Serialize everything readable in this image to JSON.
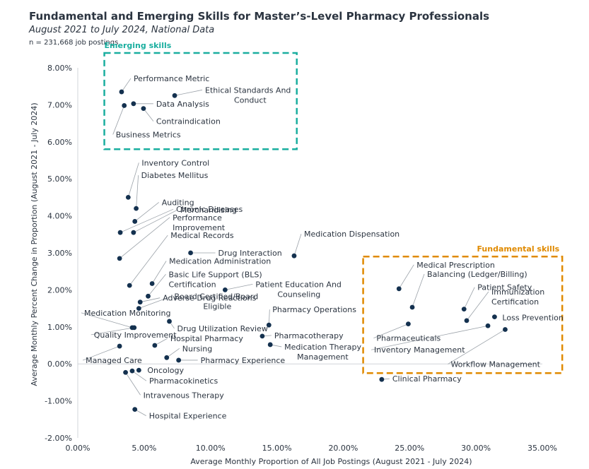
{
  "chart_data": {
    "type": "scatter",
    "title": "Fundamental and Emerging Skills for Master’s-Level Pharmacy Professionals",
    "subtitle": "August 2021 to July 2024, National Data",
    "note": "n = 231,668 job postings",
    "xlabel": "Average Monthly Proportion of All Job Postings (August 2021 - July 2024)",
    "ylabel": "Average Monthly Percent Change in Proportion (August 2021 - July 2024)",
    "xlim": [
      0,
      35
    ],
    "ylim": [
      -2,
      8
    ],
    "xticks": [
      "0.00%",
      "5.00%",
      "10.00%",
      "15.00%",
      "20.00%",
      "25.00%",
      "30.00%",
      "35.00%"
    ],
    "yticks": [
      "-2.00%",
      "-1.00%",
      "0.00%",
      "1.00%",
      "2.00%",
      "3.00%",
      "4.00%",
      "5.00%",
      "6.00%",
      "7.00%",
      "8.00%"
    ],
    "point_color": "#14314f",
    "groups": [
      {
        "name": "Emerging skills",
        "color": "#1aae9f",
        "x_range": [
          2.0,
          16.5
        ],
        "y_range": [
          5.8,
          8.4
        ]
      },
      {
        "name": "Fundamental skills",
        "color": "#e08a00",
        "x_range": [
          21.5,
          36.5
        ],
        "y_range": [
          -0.25,
          2.9
        ]
      }
    ],
    "points": [
      {
        "label": "Performance Metric",
        "x": 3.3,
        "y": 7.35
      },
      {
        "label": "Ethical Standards And Conduct",
        "x": 7.3,
        "y": 7.25
      },
      {
        "label": "Data Analysis",
        "x": 4.2,
        "y": 7.03
      },
      {
        "label": "Contraindication",
        "x": 4.95,
        "y": 6.9
      },
      {
        "label": "Business Metrics",
        "x": 3.5,
        "y": 6.98
      },
      {
        "label": "Inventory Control",
        "x": 3.8,
        "y": 4.5
      },
      {
        "label": "Diabetes Mellitus",
        "x": 4.4,
        "y": 4.2
      },
      {
        "label": "Auditing",
        "x": 4.3,
        "y": 3.85
      },
      {
        "label": "Chronic Diseases",
        "x": 3.2,
        "y": 3.55
      },
      {
        "label": "Merchandising",
        "x": 4.2,
        "y": 3.55
      },
      {
        "label": "Performance Improvement",
        "x": 3.15,
        "y": 2.85
      },
      {
        "label": "Medical Records",
        "x": 3.9,
        "y": 2.12
      },
      {
        "label": "Drug Interaction",
        "x": 8.5,
        "y": 3.0
      },
      {
        "label": "Medication Dispensation",
        "x": 16.3,
        "y": 2.92
      },
      {
        "label": "Medication Administration",
        "x": 5.6,
        "y": 2.17
      },
      {
        "label": "Basic Life Support (BLS) Certification",
        "x": 5.3,
        "y": 1.83
      },
      {
        "label": "Patient Education And Counseling",
        "x": 11.1,
        "y": 2.0
      },
      {
        "label": "Adverse Drug Reactions",
        "x": 4.7,
        "y": 1.67
      },
      {
        "label": "Board Certified/Board Eligible",
        "x": 4.6,
        "y": 1.5
      },
      {
        "label": "Medication Monitoring",
        "x": 4.1,
        "y": 0.98
      },
      {
        "label": "Drug Utilization Review",
        "x": 6.9,
        "y": 1.15
      },
      {
        "label": "Pharmacy Operations",
        "x": 14.4,
        "y": 1.05
      },
      {
        "label": "Quality Improvement",
        "x": 4.25,
        "y": 0.98
      },
      {
        "label": "Pharmacotherapy",
        "x": 13.9,
        "y": 0.75
      },
      {
        "label": "Hospital Pharmacy",
        "x": 5.8,
        "y": 0.5
      },
      {
        "label": "Medication Therapy Management",
        "x": 14.5,
        "y": 0.52
      },
      {
        "label": "Managed Care",
        "x": 3.15,
        "y": 0.48
      },
      {
        "label": "Nursing",
        "x": 6.7,
        "y": 0.17
      },
      {
        "label": "Pharmacy Experience",
        "x": 7.6,
        "y": 0.1
      },
      {
        "label": "Oncology",
        "x": 4.6,
        "y": -0.17
      },
      {
        "label": "Pharmacokinetics",
        "x": 4.1,
        "y": -0.19
      },
      {
        "label": "Intravenous Therapy",
        "x": 3.6,
        "y": -0.23
      },
      {
        "label": "Hospital Experience",
        "x": 4.3,
        "y": -1.23
      },
      {
        "label": "Medical Prescription",
        "x": 24.2,
        "y": 2.03
      },
      {
        "label": "Balancing (Ledger/Billing)",
        "x": 25.2,
        "y": 1.53
      },
      {
        "label": "Patient Safety",
        "x": 29.1,
        "y": 1.48
      },
      {
        "label": "Immunization Certification",
        "x": 29.3,
        "y": 1.17
      },
      {
        "label": "Loss Prevention",
        "x": 31.4,
        "y": 1.27
      },
      {
        "label": "Pharmaceuticals",
        "x": 24.9,
        "y": 1.08
      },
      {
        "label": "Inventory Management",
        "x": 30.9,
        "y": 1.03
      },
      {
        "label": "Workflow Management",
        "x": 32.2,
        "y": 0.93
      },
      {
        "label": "Clinical Pharmacy",
        "x": 22.9,
        "y": -0.42
      }
    ]
  }
}
